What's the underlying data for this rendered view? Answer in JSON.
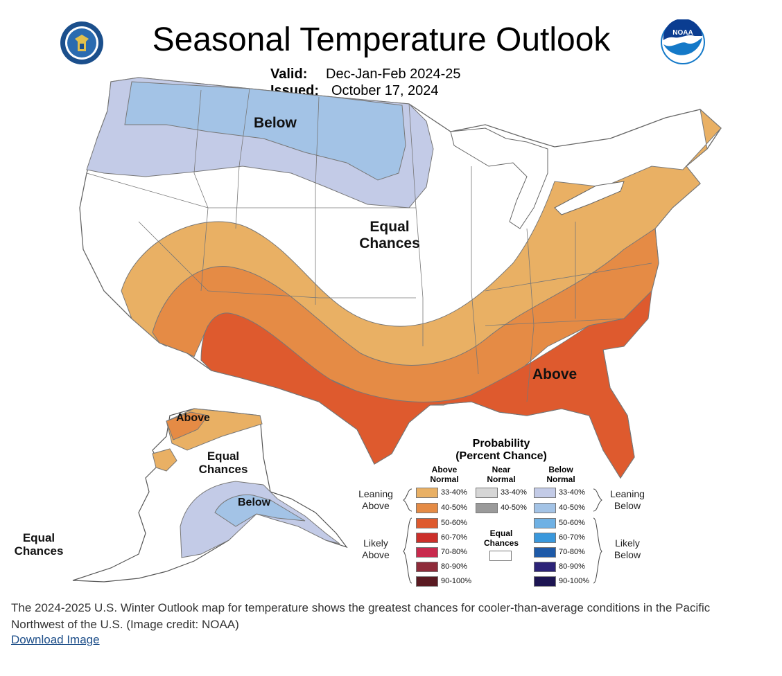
{
  "header": {
    "title": "Seasonal Temperature Outlook",
    "valid_label": "Valid:",
    "valid_value": "Dec-Jan-Feb 2024-25",
    "issued_label": "Issued:",
    "issued_value": "October 17, 2024"
  },
  "logos": {
    "left": "department-of-commerce-seal",
    "right_text": "NOAA"
  },
  "map_labels": {
    "conus_below": "Below",
    "conus_equal_1": "Equal",
    "conus_equal_2": "Chances",
    "conus_above": "Above",
    "ak_above": "Above",
    "ak_equal_1": "Equal",
    "ak_equal_2": "Chances",
    "ak_below": "Below",
    "hi_equal_1": "Equal",
    "hi_equal_2": "Chances"
  },
  "legend": {
    "title_1": "Probability",
    "title_2": "(Percent Chance)",
    "above_header_1": "Above",
    "above_header_2": "Normal",
    "near_header_1": "Near",
    "near_header_2": "Normal",
    "below_header_1": "Below",
    "below_header_2": "Normal",
    "above": [
      {
        "label": "33-40%",
        "color": "#e9b064"
      },
      {
        "label": "40-50%",
        "color": "#e58b45"
      },
      {
        "label": "50-60%",
        "color": "#de5a2e"
      },
      {
        "label": "60-70%",
        "color": "#cc2f2a"
      },
      {
        "label": "70-80%",
        "color": "#c92a4d"
      },
      {
        "label": "80-90%",
        "color": "#8f2b3a"
      },
      {
        "label": "90-100%",
        "color": "#5a1a22"
      }
    ],
    "near": [
      {
        "label": "33-40%",
        "color": "#d6d6d6"
      },
      {
        "label": "40-50%",
        "color": "#9a9a9a"
      }
    ],
    "below": [
      {
        "label": "33-40%",
        "color": "#c3cbe7"
      },
      {
        "label": "40-50%",
        "color": "#a3c3e6"
      },
      {
        "label": "50-60%",
        "color": "#6fb1e4"
      },
      {
        "label": "60-70%",
        "color": "#3a98dc"
      },
      {
        "label": "70-80%",
        "color": "#1e5aa8"
      },
      {
        "label": "80-90%",
        "color": "#2c2378"
      },
      {
        "label": "90-100%",
        "color": "#1d1552"
      }
    ],
    "equal_1": "Equal",
    "equal_2": "Chances",
    "leaning_above_1": "Leaning",
    "leaning_above_2": "Above",
    "likely_above_1": "Likely",
    "likely_above_2": "Above",
    "leaning_below_1": "Leaning",
    "leaning_below_2": "Below",
    "likely_below_1": "Likely",
    "likely_below_2": "Below"
  },
  "caption": "The 2024-2025 U.S. Winter Outlook map for temperature shows the greatest chances for cooler-than-average conditions in the Pacific Northwest of the U.S. (Image credit: NOAA)",
  "download_label": "Download Image"
}
